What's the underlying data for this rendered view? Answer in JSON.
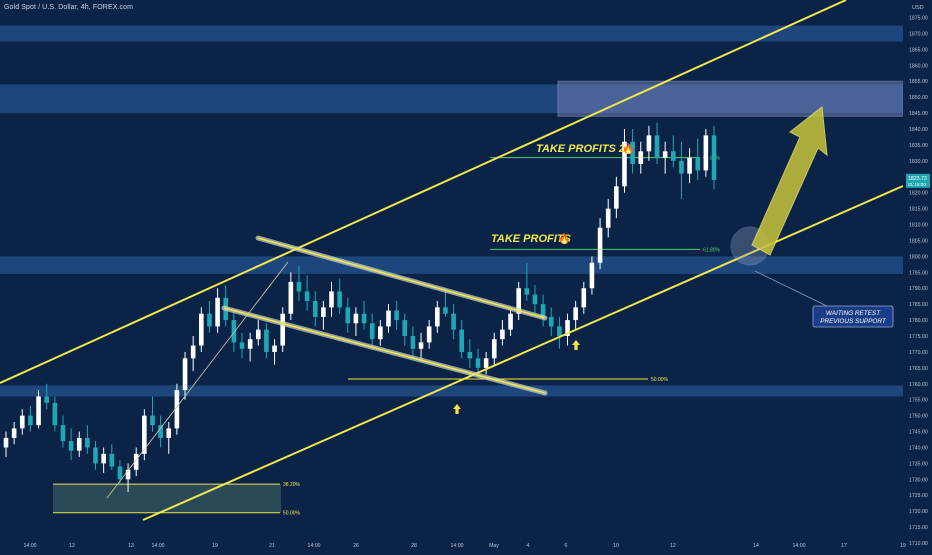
{
  "header": {
    "title": "Gold Spot / U.S. Dollar, 4h, FOREX.com"
  },
  "colors": {
    "background": "#0b2347",
    "bull_candle": "#ffffff",
    "bear_candle": "#1fa8b4",
    "channel": "#f0e84a",
    "zone": "#214c86",
    "fib_line": "#4cd36a",
    "arrow": "#c8c43a",
    "price_badge": "#1fa8b4"
  },
  "price_axis": {
    "currency": "USD",
    "labels": [
      "1875.00",
      "1870.00",
      "1865.00",
      "1860.00",
      "1855.00",
      "1850.00",
      "1845.00",
      "1840.00",
      "1835.00",
      "1830.00",
      "1825.00",
      "1820.00",
      "1815.00",
      "1810.00",
      "1805.00",
      "1800.00",
      "1795.00",
      "1790.00",
      "1785.00",
      "1780.00",
      "1775.00",
      "1770.00",
      "1765.00",
      "1760.00",
      "1755.00",
      "1750.00",
      "1745.00",
      "1740.00",
      "1735.00",
      "1730.00",
      "1725.00",
      "1720.00",
      "1715.00",
      "1710.00"
    ],
    "current_price": "1823.73",
    "countdown": "01:16:00"
  },
  "time_axis": {
    "labels": [
      "14:00",
      "12",
      "13",
      "14:00",
      "19",
      "21",
      "14:00",
      "26",
      "28",
      "14:00",
      "May",
      "4",
      "6",
      "10",
      "12",
      "14",
      "14:00",
      "17",
      "19"
    ]
  },
  "annotations": {
    "take_profits": "TAKE PROFITS",
    "take_profits_2": "TAKE PROFITS 2",
    "fib_618": "61.80%",
    "fib_618_b": "61.80%",
    "fib_500": "50.00%",
    "fib_382": "38.20%",
    "fib_500_bottom": "50.00%",
    "retest_line1": "WAITING RETEST",
    "retest_line2": "PREVIOUS SUPPORT"
  },
  "chart_data": {
    "type": "candlestick",
    "instrument": "Gold Spot / U.S. Dollar",
    "timeframe": "4h",
    "y_range": [
      1710,
      1878
    ],
    "zones": [
      {
        "low": 1867.5,
        "high": 1872.5
      },
      {
        "low": 1845,
        "high": 1854
      },
      {
        "low": 1794.5,
        "high": 1800
      },
      {
        "low": 1756,
        "high": 1759.5
      }
    ],
    "target_box": {
      "low": 1844,
      "high": 1855
    },
    "fib_levels": [
      {
        "label": "61.80%",
        "price": 1831
      },
      {
        "label": "61.80%",
        "price": 1802.2
      },
      {
        "label": "50.00%",
        "price": 1761.5
      },
      {
        "label": "38.20%",
        "price": 1728.5
      },
      {
        "label": "50.00%",
        "price": 1719.5
      }
    ],
    "candles": [
      [
        1740,
        1745,
        1737,
        1743
      ],
      [
        1743,
        1748,
        1741,
        1746
      ],
      [
        1746,
        1752,
        1744,
        1750
      ],
      [
        1750,
        1753,
        1745,
        1747
      ],
      [
        1747,
        1758,
        1746,
        1756
      ],
      [
        1756,
        1760,
        1752,
        1754
      ],
      [
        1754,
        1756,
        1745,
        1747
      ],
      [
        1747,
        1750,
        1740,
        1742
      ],
      [
        1742,
        1746,
        1736,
        1739
      ],
      [
        1739,
        1745,
        1737,
        1743
      ],
      [
        1743,
        1747,
        1738,
        1740
      ],
      [
        1740,
        1742,
        1733,
        1735
      ],
      [
        1735,
        1740,
        1732,
        1738
      ],
      [
        1738,
        1741,
        1733,
        1734
      ],
      [
        1734,
        1736,
        1728,
        1730
      ],
      [
        1730,
        1735,
        1726,
        1733
      ],
      [
        1733,
        1740,
        1731,
        1738
      ],
      [
        1738,
        1752,
        1736,
        1750
      ],
      [
        1750,
        1756,
        1745,
        1747
      ],
      [
        1747,
        1750,
        1740,
        1743
      ],
      [
        1743,
        1748,
        1738,
        1746
      ],
      [
        1746,
        1760,
        1744,
        1758
      ],
      [
        1758,
        1770,
        1755,
        1768
      ],
      [
        1768,
        1775,
        1764,
        1772
      ],
      [
        1772,
        1784,
        1770,
        1782
      ],
      [
        1782,
        1786,
        1776,
        1778
      ],
      [
        1778,
        1790,
        1776,
        1787
      ],
      [
        1787,
        1791,
        1778,
        1780
      ],
      [
        1780,
        1783,
        1770,
        1773
      ],
      [
        1773,
        1776,
        1768,
        1771
      ],
      [
        1771,
        1776,
        1767,
        1774
      ],
      [
        1774,
        1780,
        1772,
        1777
      ],
      [
        1777,
        1779,
        1768,
        1770
      ],
      [
        1770,
        1774,
        1766,
        1772
      ],
      [
        1772,
        1784,
        1770,
        1782
      ],
      [
        1782,
        1795,
        1780,
        1792
      ],
      [
        1792,
        1797,
        1786,
        1789
      ],
      [
        1789,
        1794,
        1783,
        1786
      ],
      [
        1786,
        1789,
        1778,
        1781
      ],
      [
        1781,
        1786,
        1777,
        1784
      ],
      [
        1784,
        1792,
        1781,
        1789
      ],
      [
        1789,
        1793,
        1782,
        1784
      ],
      [
        1784,
        1787,
        1776,
        1779
      ],
      [
        1779,
        1784,
        1775,
        1782
      ],
      [
        1782,
        1786,
        1777,
        1779
      ],
      [
        1779,
        1782,
        1771,
        1774
      ],
      [
        1774,
        1780,
        1772,
        1778
      ],
      [
        1778,
        1785,
        1776,
        1783
      ],
      [
        1783,
        1786,
        1777,
        1780
      ],
      [
        1780,
        1782,
        1772,
        1775
      ],
      [
        1775,
        1778,
        1768,
        1771
      ],
      [
        1771,
        1776,
        1767,
        1773
      ],
      [
        1773,
        1780,
        1771,
        1778
      ],
      [
        1778,
        1786,
        1776,
        1784
      ],
      [
        1784,
        1790,
        1781,
        1782
      ],
      [
        1782,
        1785,
        1774,
        1777
      ],
      [
        1777,
        1780,
        1768,
        1770
      ],
      [
        1770,
        1774,
        1765,
        1768
      ],
      [
        1768,
        1771,
        1762,
        1765
      ],
      [
        1765,
        1770,
        1763,
        1768
      ],
      [
        1768,
        1776,
        1766,
        1774
      ],
      [
        1774,
        1780,
        1772,
        1777
      ],
      [
        1777,
        1784,
        1775,
        1782
      ],
      [
        1782,
        1792,
        1780,
        1790
      ],
      [
        1790,
        1798,
        1786,
        1788
      ],
      [
        1788,
        1791,
        1782,
        1785
      ],
      [
        1785,
        1788,
        1778,
        1781
      ],
      [
        1781,
        1784,
        1775,
        1778
      ],
      [
        1778,
        1781,
        1771,
        1775
      ],
      [
        1775,
        1782,
        1772,
        1780
      ],
      [
        1780,
        1786,
        1777,
        1784
      ],
      [
        1784,
        1792,
        1782,
        1790
      ],
      [
        1790,
        1800,
        1788,
        1798
      ],
      [
        1798,
        1812,
        1796,
        1809
      ],
      [
        1809,
        1818,
        1806,
        1815
      ],
      [
        1815,
        1825,
        1812,
        1822
      ],
      [
        1822,
        1840,
        1820,
        1836
      ],
      [
        1836,
        1840,
        1826,
        1829
      ],
      [
        1829,
        1836,
        1826,
        1833
      ],
      [
        1833,
        1841,
        1830,
        1838
      ],
      [
        1838,
        1842,
        1829,
        1831
      ],
      [
        1831,
        1836,
        1826,
        1833
      ],
      [
        1833,
        1838,
        1828,
        1830
      ],
      [
        1830,
        1836,
        1818,
        1826
      ],
      [
        1826,
        1834,
        1823,
        1831
      ],
      [
        1831,
        1837,
        1824,
        1827
      ],
      [
        1827,
        1840,
        1825,
        1838
      ],
      [
        1838,
        1841,
        1821,
        1824
      ]
    ]
  }
}
